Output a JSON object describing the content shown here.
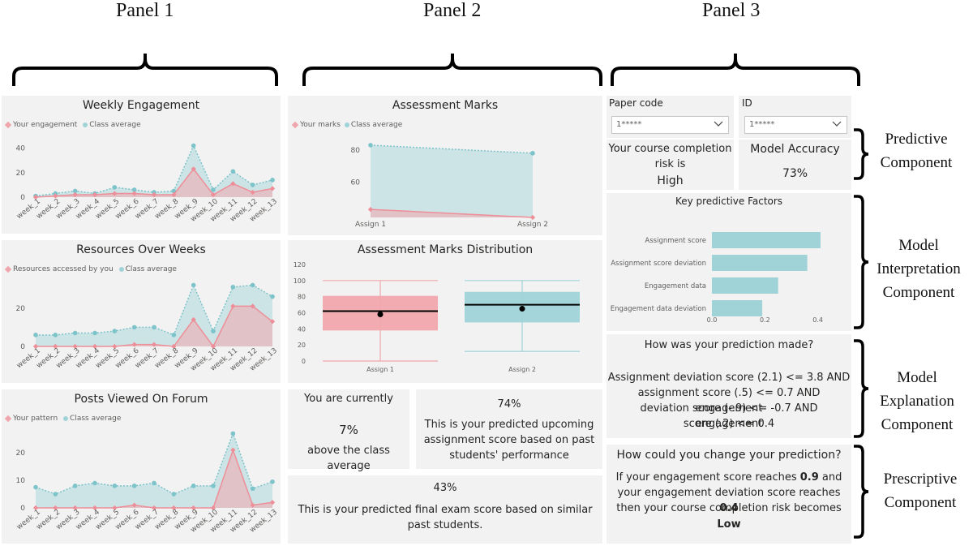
{
  "panels": {
    "panel1": "Panel 1",
    "panel2": "Panel 2",
    "panel3": "Panel 3"
  },
  "colors": {
    "your": "#f0a6ad",
    "your_line": "#ee8e98",
    "class": "#9fd3d8",
    "class_line": "#7cc3ca",
    "card_bg": "#f2f2f2"
  },
  "weekly_engagement": {
    "title": "Weekly Engagement",
    "legend_you": "Your engagement",
    "legend_class": "Class average",
    "chart_data": {
      "type": "area",
      "categories": [
        "week_1",
        "week_2",
        "week_3",
        "week_4",
        "week_5",
        "week_6",
        "week_7",
        "week_8",
        "week_9",
        "week_10",
        "week_11",
        "week_12",
        "week_13"
      ],
      "series": [
        {
          "name": "Your engagement",
          "values": [
            0,
            1,
            2,
            2,
            3,
            3,
            2,
            2,
            23,
            2,
            11,
            4,
            7
          ]
        },
        {
          "name": "Class average",
          "values": [
            1,
            3,
            5,
            3,
            8,
            6,
            4,
            5,
            42,
            6,
            21,
            10,
            14
          ]
        }
      ],
      "ylim": [
        0,
        45
      ],
      "yticks": [
        0,
        20,
        40
      ]
    }
  },
  "resources": {
    "title": "Resources Over Weeks",
    "legend_you": "Resources accessed by you",
    "legend_class": "Class average",
    "chart_data": {
      "type": "area",
      "categories": [
        "week_1",
        "week_2",
        "week_3",
        "week_4",
        "week_5",
        "week_6",
        "week_7",
        "week_8",
        "week_9",
        "week_10",
        "week_11",
        "week_12",
        "week_13"
      ],
      "series": [
        {
          "name": "Resources accessed by you",
          "values": [
            0,
            0,
            0,
            0,
            0,
            1,
            1,
            0,
            14,
            0,
            21,
            21,
            13
          ]
        },
        {
          "name": "Class average",
          "values": [
            6,
            6,
            7,
            7,
            8,
            10,
            10,
            6,
            32,
            8,
            31,
            32,
            26
          ]
        }
      ],
      "ylim": [
        0,
        36
      ],
      "yticks": [
        0,
        20
      ]
    }
  },
  "posts": {
    "title": "Posts Viewed On Forum",
    "legend_you": "Your pattern",
    "legend_class": "Class average",
    "chart_data": {
      "type": "area",
      "categories": [
        "week_1",
        "week_2",
        "week_3",
        "week_4",
        "week_5",
        "week_6",
        "week_7",
        "week_8",
        "week_9",
        "week_10",
        "week_11",
        "week_12",
        "week_13"
      ],
      "series": [
        {
          "name": "Your pattern",
          "values": [
            0,
            0,
            0,
            0,
            0,
            1,
            0,
            0,
            0,
            0,
            21,
            1,
            2
          ]
        },
        {
          "name": "Class average",
          "values": [
            7.5,
            5,
            8,
            9,
            8,
            8,
            9,
            5,
            8,
            8,
            27,
            7,
            9.5
          ]
        }
      ],
      "ylim": [
        0,
        28
      ],
      "yticks": [
        0,
        10,
        20
      ]
    }
  },
  "assessment_marks": {
    "title": "Assessment Marks",
    "legend_you": "Your marks",
    "legend_class": "Class average",
    "chart_data": {
      "type": "area",
      "categories": [
        "Assign 1",
        "Assign 2"
      ],
      "series": [
        {
          "name": "Your marks",
          "values": [
            43,
            38
          ]
        },
        {
          "name": "Class average",
          "values": [
            83,
            78
          ]
        }
      ],
      "ylim": [
        38,
        86
      ],
      "yticks": [
        60,
        80
      ]
    }
  },
  "distribution": {
    "title": "Assessment Marks Distribution",
    "chart_data": {
      "type": "box",
      "categories": [
        "Assign 1",
        "Assign 2"
      ],
      "boxes": [
        {
          "name": "Assign 1",
          "min": 0,
          "q1": 38,
          "median": 62,
          "q3": 81,
          "max": 100,
          "mean": 58
        },
        {
          "name": "Assign 2",
          "min": 12,
          "q1": 48,
          "median": 70,
          "q3": 86,
          "max": 100,
          "mean": 65
        }
      ],
      "ylim": [
        0,
        120
      ],
      "yticks": [
        0,
        20,
        40,
        60,
        80,
        100,
        120
      ]
    }
  },
  "currently": {
    "line1": "You are currently",
    "value": "7%",
    "line2": "above the class average"
  },
  "upcoming": {
    "value": "74%",
    "line1": "This is your predicted upcoming",
    "line2": "assignment score based on past",
    "line3": "students' performance"
  },
  "final_exam": {
    "value": "43%",
    "line1": "This is your predicted final exam score based on similar",
    "line2": "past students."
  },
  "filters": {
    "paper_label": "Paper code",
    "paper_value": "1*****",
    "id_label": "ID",
    "id_value": "1*****"
  },
  "risk": {
    "line1": "Your course completion",
    "line2": "risk is",
    "value": "High"
  },
  "accuracy": {
    "label": "Model Accuracy",
    "value": "73%"
  },
  "key_factors": {
    "title": "Key predictive Factors",
    "chart_data": {
      "type": "bar",
      "orientation": "horizontal",
      "categories": [
        "Assignment score",
        "Assignment score deviation",
        "Engagement data",
        "Engagement data deviation"
      ],
      "values": [
        0.41,
        0.36,
        0.25,
        0.19
      ],
      "xlim": [
        0,
        0.45
      ],
      "xticks": [
        "0.0",
        "0.2",
        "0.4"
      ]
    }
  },
  "how_made": {
    "title": "How was your prediction made?",
    "line1": "Assignment deviation score (2.1) <= 3.8 AND",
    "line2": "assignment score (.5) <= 0.7 AND engagement",
    "line3": "deviation score (-.9) <= -0.7 AND engagement",
    "line4": "score (.2) <= 0.4"
  },
  "change": {
    "title": "How could you change your prediction?",
    "line1a": "If your engagement score reaches ",
    "line1b": "0.9",
    "line1c": " and",
    "line2a": "your engagement deviation score reaches ",
    "line2b": "0.4",
    "line3": "then your course completion risk becomes",
    "line4": "Low"
  },
  "components": {
    "predictive": [
      "Predictive",
      "Component"
    ],
    "interpretation": [
      "Model",
      "Interpretation",
      "Component"
    ],
    "explanation": [
      "Model",
      "Explanation",
      "Component"
    ],
    "prescriptive": [
      "Prescriptive",
      "Component"
    ]
  }
}
